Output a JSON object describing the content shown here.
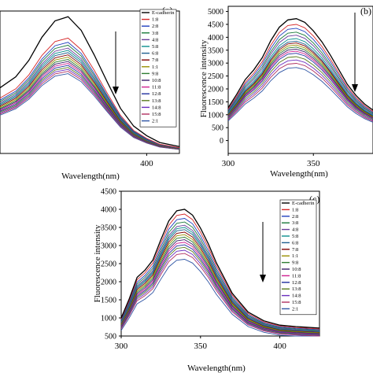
{
  "panels_meta": {
    "legend_labels": [
      "E-cadherin",
      "1:8",
      "2:8",
      "3:8",
      "4:8",
      "5:8",
      "6:8",
      "7:8",
      "1:1",
      "9:8",
      "10:8",
      "11:8",
      "12:8",
      "13:8",
      "14:8",
      "15:8",
      "2:1"
    ],
    "series_colors": [
      "#000000",
      "#d62728",
      "#1f3fbf",
      "#1a7a3a",
      "#6a3d9a",
      "#0b8f8f",
      "#1f5f8f",
      "#800000",
      "#9a8f00",
      "#2e7d32",
      "#3a1f6a",
      "#d02090",
      "#1f2f9f",
      "#5a7d1f",
      "#6b2fbf",
      "#b03060",
      "#2f55a5"
    ]
  },
  "chart_data": [
    {
      "type": "line",
      "panel_label": "(a)",
      "xlabel": "Wavelength(nm)",
      "ylabel": "",
      "xlim": [
        288,
        425
      ],
      "xticks": [
        400
      ],
      "ylim": [
        0,
        5000
      ],
      "x": [
        288,
        300,
        310,
        320,
        330,
        340,
        350,
        360,
        370,
        380,
        390,
        400,
        410,
        425
      ],
      "shape": [
        0.48,
        0.56,
        0.68,
        0.85,
        0.97,
        1.0,
        0.9,
        0.72,
        0.52,
        0.33,
        0.2,
        0.13,
        0.08,
        0.05
      ],
      "series": [
        {
          "name": "E-cadherin",
          "peak": 4800
        },
        {
          "name": "1:8",
          "peak": 4050
        },
        {
          "name": "2:8",
          "peak": 3900
        },
        {
          "name": "3:8",
          "peak": 3800
        },
        {
          "name": "4:8",
          "peak": 3700
        },
        {
          "name": "5:8",
          "peak": 3620
        },
        {
          "name": "6:8",
          "peak": 3540
        },
        {
          "name": "7:8",
          "peak": 3460
        },
        {
          "name": "1:1",
          "peak": 3380
        },
        {
          "name": "9:8",
          "peak": 3300
        },
        {
          "name": "10:8",
          "peak": 3230
        },
        {
          "name": "11:8",
          "peak": 3160
        },
        {
          "name": "12:8",
          "peak": 3090
        },
        {
          "name": "13:8",
          "peak": 3020
        },
        {
          "name": "14:8",
          "peak": 2950
        },
        {
          "name": "15:8",
          "peak": 2880
        },
        {
          "name": "2:1",
          "peak": 2800
        }
      ]
    },
    {
      "type": "line",
      "panel_label": "(b)",
      "xlabel": "Wavelength(nm)",
      "ylabel": "Fluorescence intensity",
      "xlim": [
        300,
        385
      ],
      "xticks": [
        300,
        350
      ],
      "ylim": [
        -500,
        5200
      ],
      "yticks": [
        0,
        500,
        1000,
        1500,
        2000,
        2500,
        3000,
        3500,
        4000,
        4500,
        5000
      ],
      "x": [
        300,
        305,
        310,
        315,
        320,
        325,
        330,
        335,
        340,
        345,
        350,
        355,
        360,
        365,
        370,
        375,
        380,
        385
      ],
      "shape": [
        0.27,
        0.38,
        0.5,
        0.58,
        0.68,
        0.82,
        0.93,
        0.99,
        1.0,
        0.97,
        0.9,
        0.81,
        0.7,
        0.58,
        0.46,
        0.37,
        0.3,
        0.25
      ],
      "series": [
        {
          "name": "E-cadherin",
          "peak": 4720
        },
        {
          "name": "1:8",
          "peak": 4500
        },
        {
          "name": "2:8",
          "peak": 4350
        },
        {
          "name": "3:8",
          "peak": 4200
        },
        {
          "name": "4:8",
          "peak": 4080
        },
        {
          "name": "5:8",
          "peak": 3950
        },
        {
          "name": "6:8",
          "peak": 3850
        },
        {
          "name": "7:8",
          "peak": 3780
        },
        {
          "name": "1:1",
          "peak": 3700
        },
        {
          "name": "9:8",
          "peak": 3620
        },
        {
          "name": "10:8",
          "peak": 3540
        },
        {
          "name": "11:8",
          "peak": 3460
        },
        {
          "name": "12:8",
          "peak": 3380
        },
        {
          "name": "13:8",
          "peak": 3250
        },
        {
          "name": "14:8",
          "peak": 3120
        },
        {
          "name": "15:8",
          "peak": 2990
        },
        {
          "name": "2:1",
          "peak": 2830
        }
      ]
    },
    {
      "type": "line",
      "panel_label": "(c)",
      "xlabel": "Wavelength(nm)",
      "ylabel": "Fluorescence intensity",
      "xlim": [
        300,
        425
      ],
      "xticks": [
        300,
        350,
        400
      ],
      "ylim": [
        500,
        4500
      ],
      "yticks": [
        500,
        1000,
        1500,
        2000,
        2500,
        3000,
        3500,
        4000,
        4500
      ],
      "x": [
        300,
        305,
        310,
        315,
        320,
        325,
        330,
        335,
        340,
        345,
        350,
        355,
        360,
        370,
        380,
        390,
        400,
        410,
        425
      ],
      "shape": [
        0.25,
        0.38,
        0.53,
        0.58,
        0.65,
        0.79,
        0.92,
        0.99,
        1.0,
        0.96,
        0.87,
        0.76,
        0.63,
        0.42,
        0.29,
        0.23,
        0.2,
        0.19,
        0.18
      ],
      "series": [
        {
          "name": "E-cadherin",
          "peak": 4000
        },
        {
          "name": "1:8",
          "peak": 3870
        },
        {
          "name": "2:8",
          "peak": 3750
        },
        {
          "name": "3:8",
          "peak": 3650
        },
        {
          "name": "4:8",
          "peak": 3560
        },
        {
          "name": "5:8",
          "peak": 3500
        },
        {
          "name": "6:8",
          "peak": 3440
        },
        {
          "name": "7:8",
          "peak": 3370
        },
        {
          "name": "1:1",
          "peak": 3300
        },
        {
          "name": "9:8",
          "peak": 3230
        },
        {
          "name": "10:8",
          "peak": 3160
        },
        {
          "name": "11:8",
          "peak": 3090
        },
        {
          "name": "12:8",
          "peak": 3020
        },
        {
          "name": "13:8",
          "peak": 2950
        },
        {
          "name": "14:8",
          "peak": 2870
        },
        {
          "name": "15:8",
          "peak": 2780
        },
        {
          "name": "2:1",
          "peak": 2620
        }
      ]
    }
  ]
}
